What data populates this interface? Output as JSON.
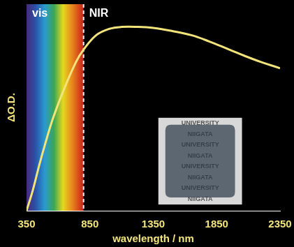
{
  "chart_data": {
    "type": "line",
    "x_label": "wavelength / nm",
    "y_label": "ΔO.D.",
    "x": [
      350,
      400,
      450,
      500,
      560,
      640,
      740,
      800,
      900,
      1000,
      1100,
      1230,
      1350,
      1500,
      1650,
      1790,
      1950,
      2070,
      2200,
      2350
    ],
    "values": [
      0,
      0.1,
      0.22,
      0.33,
      0.45,
      0.58,
      0.72,
      0.78,
      0.85,
      0.88,
      0.89,
      0.89,
      0.885,
      0.87,
      0.85,
      0.82,
      0.78,
      0.75,
      0.72,
      0.69
    ],
    "color": "#f2e47a",
    "xlim": [
      350,
      2350
    ],
    "xticks": [
      350,
      850,
      1350,
      1850,
      2350
    ],
    "ylim": [
      0,
      1
    ],
    "yticks": [],
    "grid": false,
    "tick_labels": "x",
    "annotations": [
      "vis",
      "NIR"
    ],
    "boundary": 800,
    "inset_text": [
      "UNIVERSITY",
      "NIIGATA"
    ]
  }
}
